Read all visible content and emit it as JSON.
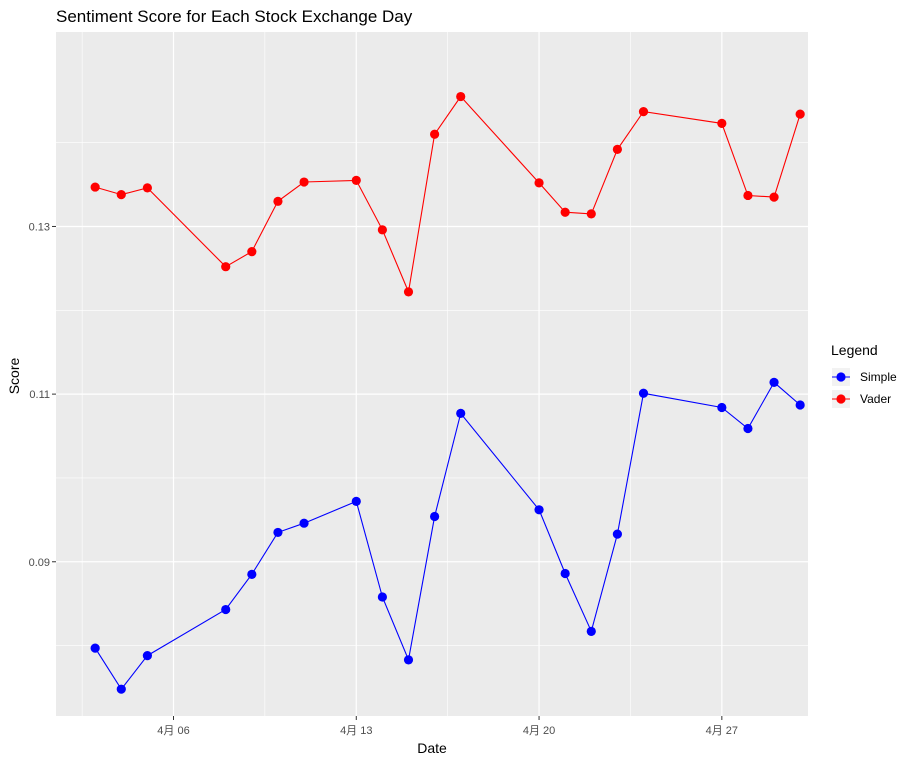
{
  "chart_data": {
    "type": "line",
    "title": "Sentiment Score for Each Stock Exchange Day",
    "xlabel": "Date",
    "ylabel": "Score",
    "x_ticks": [
      {
        "label": "4月 06",
        "day": 6
      },
      {
        "label": "4月 13",
        "day": 13
      },
      {
        "label": "4月 20",
        "day": 20
      },
      {
        "label": "4月 27",
        "day": 27
      }
    ],
    "y_ticks": [
      {
        "label": "0.09",
        "value": 0.09
      },
      {
        "label": "0.11",
        "value": 0.11
      },
      {
        "label": "0.13",
        "value": 0.13
      }
    ],
    "xlim": [
      1.5,
      30.3
    ],
    "ylim": [
      0.0716,
      0.1532
    ],
    "grid": true,
    "legend_title": "Legend",
    "legend_position": "right",
    "x_days": [
      3,
      4,
      5,
      6,
      7,
      8,
      9,
      13,
      14,
      15,
      16,
      17,
      20,
      21,
      22,
      23,
      24,
      27,
      28,
      29,
      30
    ],
    "series": [
      {
        "name": "Simple",
        "color": "#0000ff",
        "x": [
          3,
          4,
          5,
          8,
          9,
          10,
          11,
          13,
          14,
          15,
          16,
          17,
          20,
          21,
          22,
          23,
          24,
          27,
          28,
          29,
          30
        ],
        "values": [
          0.0797,
          0.0748,
          0.0788,
          0.0843,
          0.0885,
          0.0935,
          0.0946,
          0.0972,
          0.0858,
          0.0783,
          0.0954,
          0.1077,
          0.0962,
          0.0886,
          0.0817,
          0.0933,
          0.1101,
          0.1084,
          0.1059,
          0.1114,
          0.1087
        ]
      },
      {
        "name": "Vader",
        "color": "#ff0000",
        "x": [
          3,
          4,
          5,
          8,
          9,
          10,
          11,
          13,
          14,
          15,
          16,
          17,
          20,
          21,
          22,
          23,
          24,
          27,
          28,
          29,
          30
        ],
        "values": [
          0.1347,
          0.1338,
          0.1346,
          0.1252,
          0.127,
          0.133,
          0.1353,
          0.1355,
          0.1296,
          0.1222,
          0.141,
          0.1455,
          0.1352,
          0.1317,
          0.1315,
          0.1392,
          0.1437,
          0.1423,
          0.1337,
          0.1335,
          0.1434
        ]
      }
    ]
  }
}
